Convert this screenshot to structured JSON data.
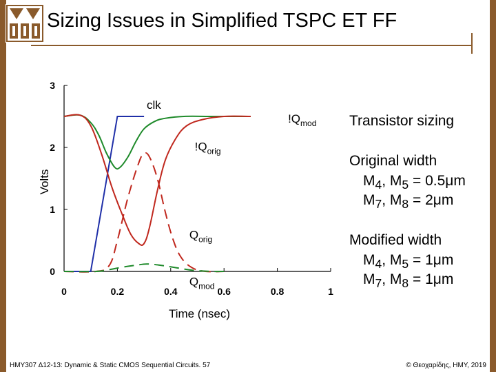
{
  "slide": {
    "title": "Sizing Issues in Simplified TSPC ET FF",
    "footer_left": "HMY307 Δ12-13: Dynamic & Static CMOS Sequential Circuits. 57",
    "footer_right": "© Θεοχαρίδης, ΗΜΥ, 2019",
    "frame_color": "#8a5a2b"
  },
  "side_panel": {
    "heading": "Transistor sizing",
    "original_title": "Original width",
    "original_lines": [
      {
        "a": "M",
        "a_sub": "4",
        "b": ", M",
        "b_sub": "5",
        "c": " = 0.5",
        "unit": "μ",
        "d": "m"
      },
      {
        "a": "M",
        "a_sub": "7",
        "b": ", M",
        "b_sub": "8",
        "c": " = 2",
        "unit": "μ",
        "d": "m"
      }
    ],
    "modified_title": "Modified width",
    "modified_lines": [
      {
        "a": "M",
        "a_sub": "4",
        "b": ", M",
        "b_sub": "5",
        "c": " = 1",
        "unit": "μ",
        "d": "m"
      },
      {
        "a": "M",
        "a_sub": "7",
        "b": ", M",
        "b_sub": "8",
        "c": " = 1",
        "unit": "μ",
        "d": "m"
      }
    ]
  },
  "chart_data": {
    "type": "line",
    "xlabel": "Time (nsec)",
    "ylabel": "Volts",
    "xlim": [
      0,
      1
    ],
    "ylim": [
      0,
      3
    ],
    "xticks": [
      0,
      0.2,
      0.4,
      0.6,
      0.8,
      1
    ],
    "xtick_labels": [
      "0",
      "0.2",
      "0.4",
      "0.6",
      "0.8",
      "1"
    ],
    "yticks": [
      0,
      1,
      2,
      3
    ],
    "ytick_labels": [
      "0",
      "1",
      "2",
      "3"
    ],
    "grid": false,
    "series": [
      {
        "name": "clk",
        "color": "#1f2fa8",
        "dash": false,
        "x": [
          0,
          0.1,
          0.2,
          0.3
        ],
        "y": [
          0,
          0,
          2.5,
          2.5
        ]
      },
      {
        "name": "!Qmod",
        "color": "#1e8a2a",
        "dash": false,
        "x": [
          0,
          0.06,
          0.1,
          0.13,
          0.16,
          0.19,
          0.21,
          0.24,
          0.27,
          0.3,
          0.34,
          0.38,
          0.45,
          0.55,
          0.7
        ],
        "y": [
          2.5,
          2.52,
          2.4,
          2.2,
          1.9,
          1.68,
          1.68,
          1.85,
          2.1,
          2.3,
          2.42,
          2.47,
          2.5,
          2.5,
          2.5
        ]
      },
      {
        "name": "!Qorig",
        "color": "#c0281e",
        "dash": false,
        "x": [
          0,
          0.06,
          0.1,
          0.14,
          0.18,
          0.22,
          0.25,
          0.28,
          0.3,
          0.32,
          0.35,
          0.38,
          0.42,
          0.46,
          0.52,
          0.6,
          0.7
        ],
        "y": [
          2.5,
          2.52,
          2.35,
          1.9,
          1.35,
          0.9,
          0.6,
          0.45,
          0.45,
          0.7,
          1.3,
          1.8,
          2.15,
          2.35,
          2.45,
          2.5,
          2.5
        ]
      },
      {
        "name": "Qorig",
        "color": "#c0281e",
        "dash": true,
        "x": [
          0,
          0.12,
          0.17,
          0.2,
          0.24,
          0.28,
          0.3,
          0.32,
          0.35,
          0.38,
          0.41,
          0.44,
          0.48,
          0.53,
          0.6
        ],
        "y": [
          0,
          0,
          0.1,
          0.5,
          1.2,
          1.75,
          1.9,
          1.85,
          1.5,
          0.95,
          0.5,
          0.22,
          0.06,
          0,
          0
        ]
      },
      {
        "name": "Qmod",
        "color": "#1e8a2a",
        "dash": true,
        "x": [
          0,
          0.12,
          0.17,
          0.22,
          0.27,
          0.31,
          0.36,
          0.42,
          0.48,
          0.55,
          0.6
        ],
        "y": [
          0,
          0,
          0.03,
          0.07,
          0.1,
          0.12,
          0.1,
          0.06,
          0.02,
          0,
          0
        ]
      }
    ],
    "annotations": [
      {
        "text": "clk",
        "sub": "",
        "x": 0.31,
        "y": 2.62,
        "color": "#1f2fa8"
      },
      {
        "text": "!Q",
        "sub": "mod",
        "x": 0.84,
        "y": 2.4,
        "color": "#1e8a2a"
      },
      {
        "text": "!Q",
        "sub": "orig",
        "x": 0.49,
        "y": 1.95,
        "color": "#c0281e"
      },
      {
        "text": "Q",
        "sub": "orig",
        "x": 0.47,
        "y": 0.53,
        "color": "#c0281e"
      },
      {
        "text": "Q",
        "sub": "mod",
        "x": 0.47,
        "y": -0.23,
        "color": "#1e8a2a"
      }
    ]
  }
}
